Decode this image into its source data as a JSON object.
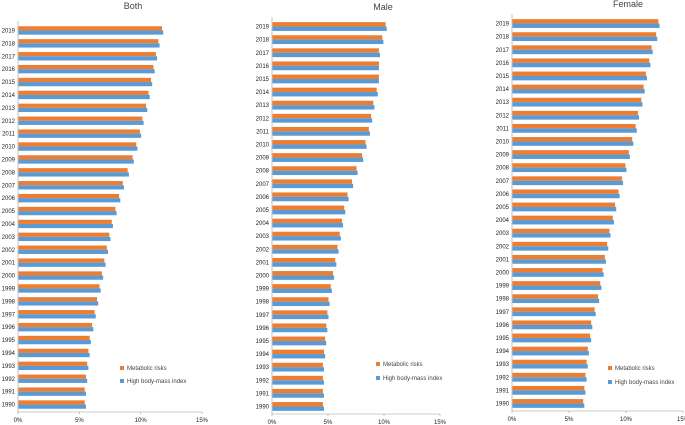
{
  "colors": {
    "metabolic": "#ED7D31",
    "bmi": "#5B9BD5"
  },
  "chart_data": [
    {
      "type": "bar",
      "orientation": "horizontal",
      "title": "Both",
      "categories": [
        "2019",
        "2018",
        "2017",
        "2016",
        "2015",
        "2014",
        "2013",
        "2012",
        "2011",
        "2010",
        "2009",
        "2008",
        "2007",
        "2006",
        "2005",
        "2004",
        "2003",
        "2002",
        "2001",
        "2000",
        "1999",
        "1998",
        "1997",
        "1996",
        "1995",
        "1994",
        "1993",
        "1992",
        "1991",
        "1990"
      ],
      "series": [
        {
          "name": "Metabolic risks",
          "values": [
            11.7,
            11.4,
            11.2,
            11.0,
            10.8,
            10.6,
            10.4,
            10.1,
            9.9,
            9.6,
            9.3,
            8.9,
            8.5,
            8.2,
            7.9,
            7.6,
            7.4,
            7.2,
            7.0,
            6.8,
            6.6,
            6.4,
            6.2,
            6.0,
            5.8,
            5.7,
            5.6,
            5.5,
            5.4,
            5.4
          ]
        },
        {
          "name": "High body-mass index",
          "values": [
            11.8,
            11.5,
            11.3,
            11.1,
            10.9,
            10.7,
            10.5,
            10.2,
            10.0,
            9.7,
            9.4,
            9.0,
            8.6,
            8.3,
            8.0,
            7.7,
            7.5,
            7.3,
            7.1,
            6.9,
            6.7,
            6.5,
            6.3,
            6.1,
            5.9,
            5.8,
            5.7,
            5.6,
            5.5,
            5.5
          ]
        }
      ],
      "x_ticks": [
        "0%",
        "5%",
        "10%",
        "15%"
      ],
      "xlim": [
        0,
        15
      ],
      "legend_position": "bottom-right"
    },
    {
      "type": "bar",
      "orientation": "horizontal",
      "title": "Male",
      "categories": [
        "2019",
        "2018",
        "2017",
        "2016",
        "2015",
        "2014",
        "2013",
        "2012",
        "2011",
        "2010",
        "2009",
        "2008",
        "2007",
        "2006",
        "2005",
        "2004",
        "2003",
        "2002",
        "2001",
        "2000",
        "1999",
        "1998",
        "1997",
        "1996",
        "1995",
        "1994",
        "1993",
        "1992",
        "1991",
        "1990"
      ],
      "series": [
        {
          "name": "Metabolic risks",
          "values": [
            10.1,
            9.8,
            9.5,
            9.5,
            9.5,
            9.3,
            9.0,
            8.8,
            8.6,
            8.3,
            8.0,
            7.5,
            7.1,
            6.7,
            6.4,
            6.2,
            6.0,
            5.8,
            5.6,
            5.4,
            5.2,
            5.0,
            4.9,
            4.8,
            4.7,
            4.6,
            4.5,
            4.5,
            4.5,
            4.5
          ]
        },
        {
          "name": "High body-mass index",
          "values": [
            10.2,
            9.9,
            9.6,
            9.5,
            9.5,
            9.4,
            9.1,
            8.9,
            8.7,
            8.4,
            8.1,
            7.6,
            7.2,
            6.8,
            6.5,
            6.3,
            6.1,
            5.9,
            5.7,
            5.5,
            5.3,
            5.1,
            5.0,
            4.9,
            4.8,
            4.7,
            4.6,
            4.6,
            4.6,
            4.6
          ]
        }
      ],
      "x_ticks": [
        "0%",
        "5%",
        "10%",
        "15%"
      ],
      "xlim": [
        0,
        15
      ],
      "legend_position": "bottom-right"
    },
    {
      "type": "bar",
      "orientation": "horizontal",
      "title": "Female",
      "categories": [
        "2019",
        "2018",
        "2017",
        "2016",
        "2015",
        "2014",
        "2013",
        "2012",
        "2011",
        "2010",
        "2009",
        "2008",
        "2007",
        "2006",
        "2005",
        "2004",
        "2003",
        "2002",
        "2001",
        "2000",
        "1999",
        "1998",
        "1997",
        "1996",
        "1995",
        "1994",
        "1993",
        "1992",
        "1991",
        "1990"
      ],
      "series": [
        {
          "name": "Metabolic risks",
          "values": [
            12.8,
            12.6,
            12.2,
            12.0,
            11.7,
            11.5,
            11.3,
            11.0,
            10.8,
            10.5,
            10.2,
            9.9,
            9.6,
            9.3,
            9.0,
            8.8,
            8.5,
            8.3,
            8.1,
            7.9,
            7.7,
            7.5,
            7.2,
            6.9,
            6.8,
            6.6,
            6.5,
            6.4,
            6.3,
            6.2
          ]
        },
        {
          "name": "High body-mass index",
          "values": [
            12.9,
            12.7,
            12.3,
            12.1,
            11.8,
            11.6,
            11.4,
            11.1,
            10.9,
            10.6,
            10.3,
            10.0,
            9.7,
            9.4,
            9.1,
            8.9,
            8.6,
            8.4,
            8.2,
            8.0,
            7.8,
            7.6,
            7.3,
            7.0,
            6.9,
            6.7,
            6.6,
            6.5,
            6.4,
            6.3
          ]
        }
      ],
      "x_ticks": [
        "0%",
        "5%",
        "10%",
        "15%"
      ],
      "xlim": [
        0,
        15
      ],
      "legend_position": "bottom-right"
    }
  ]
}
